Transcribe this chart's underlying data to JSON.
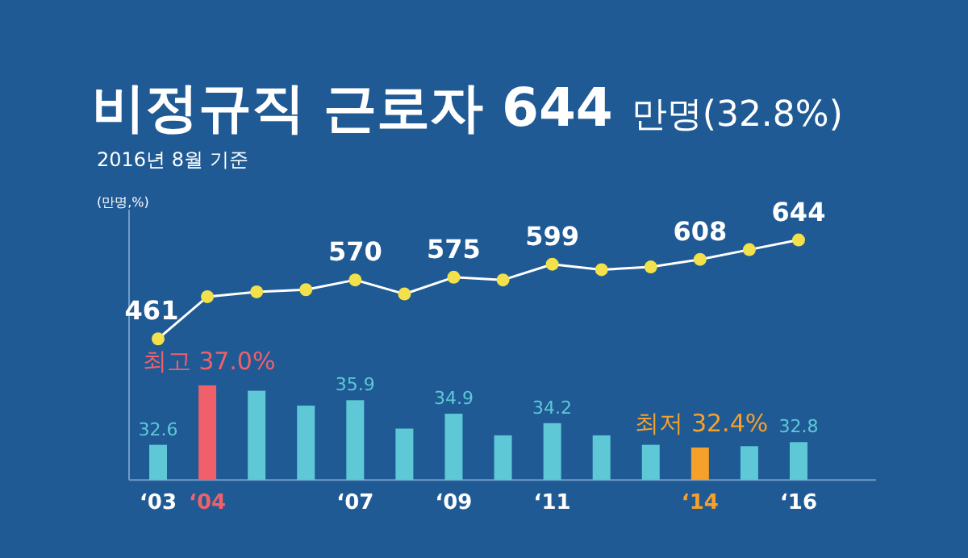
{
  "chart_data": {
    "type": "bar",
    "title": "비정규직  근로자 644 만명(32.8%)",
    "subtitle": "2016년 8월 기준",
    "ylabel": "(만명,%)",
    "categories": [
      "‘03",
      "‘04",
      null,
      null,
      "‘07",
      null,
      "‘09",
      null,
      "‘11",
      null,
      null,
      "‘14",
      null,
      "‘16"
    ],
    "ylim": [
      30,
      50
    ],
    "y2lim": [
      200,
      700
    ],
    "tick_labels": "x",
    "series": [
      {
        "axis": "y",
        "colors": [
          "#5ec8d6",
          "#f0606a",
          "#5ec8d6",
          "#5ec8d6",
          "#5ec8d6",
          "#5ec8d6",
          "#5ec8d6",
          "#5ec8d6",
          "#5ec8d6",
          "#5ec8d6",
          "#5ec8d6",
          "#f5a02a",
          "#5ec8d6",
          "#5ec8d6"
        ],
        "values": [
          32.6,
          37.0,
          36.6,
          35.5,
          35.9,
          33.8,
          34.9,
          33.3,
          34.2,
          33.3,
          32.6,
          32.4,
          32.5,
          32.8
        ],
        "value_labels": [
          "32.6",
          "최고 37.0%",
          null,
          null,
          "35.9",
          null,
          "34.9",
          null,
          "34.2",
          null,
          null,
          "최저 32.4%",
          null,
          "32.8"
        ]
      },
      {
        "type": "line",
        "axis": "y2",
        "color": "#ffffff",
        "colors": [
          "#f2e14a",
          "#f2e14a",
          "#f2e14a",
          "#f2e14a",
          "#f2e14a",
          "#f2e14a",
          "#f2e14a",
          "#f2e14a",
          "#f2e14a",
          "#f2e14a",
          "#f2e14a",
          "#f2e14a",
          "#f2e14a",
          "#f2e14a"
        ],
        "marker": "circle",
        "line_style": "solid",
        "values": [
          461,
          539,
          548,
          552,
          570,
          544,
          575,
          570,
          599,
          589,
          594,
          608,
          626,
          644
        ],
        "value_labels": [
          "461",
          null,
          null,
          null,
          "570",
          null,
          "575",
          null,
          "599",
          null,
          null,
          "608",
          null,
          "644"
        ]
      }
    ]
  }
}
